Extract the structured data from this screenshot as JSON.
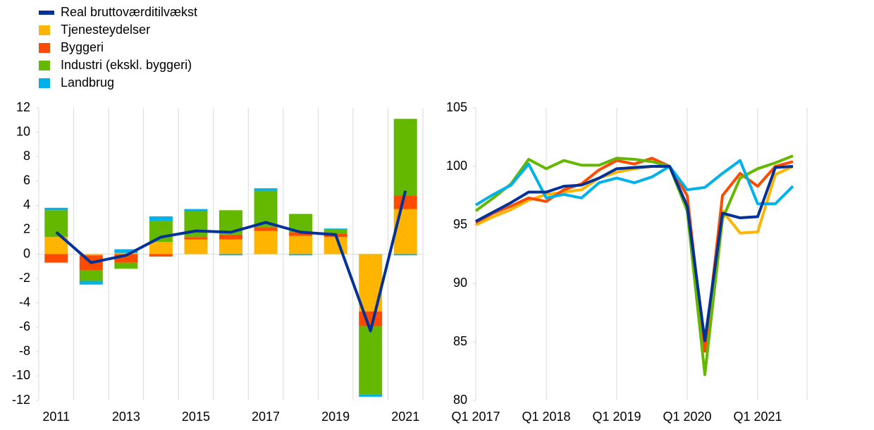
{
  "chart_data": [
    {
      "type": "bar",
      "stacked": true,
      "categories": [
        "2011",
        null,
        "2013",
        null,
        "2015",
        null,
        "2017",
        null,
        "2019",
        null,
        "2021"
      ],
      "ylim": [
        -12,
        12
      ],
      "yticks": [
        -12,
        -10,
        -8,
        -6,
        -4,
        -2,
        0,
        2,
        4,
        6,
        8,
        10,
        12
      ],
      "series": [
        {
          "name": "Real bruttoværditilvækst",
          "type": "line",
          "color": "#003299",
          "values": [
            1.8,
            -0.7,
            -0.1,
            1.4,
            1.9,
            1.8,
            2.6,
            1.8,
            1.6,
            -6.3,
            5.2
          ]
        },
        {
          "name": "Tjenesteydelser",
          "type": "bar",
          "color": "#ffb400",
          "values": [
            1.4,
            -0.1,
            0.1,
            1.0,
            1.2,
            1.2,
            1.9,
            1.5,
            1.4,
            -4.7,
            3.7
          ]
        },
        {
          "name": "Byggeri",
          "type": "bar",
          "color": "#ff4b00",
          "values": [
            -0.7,
            -1.2,
            -0.7,
            -0.2,
            0.2,
            0.4,
            0.3,
            0.3,
            0.3,
            -1.2,
            1.1
          ]
        },
        {
          "name": "Industri (ekskl. byggeri)",
          "type": "bar",
          "color": "#65b800",
          "values": [
            2.2,
            -0.9,
            -0.5,
            1.7,
            2.1,
            2.0,
            3.0,
            1.5,
            0.3,
            -5.6,
            6.3
          ]
        },
        {
          "name": "Landbrug",
          "type": "bar",
          "color": "#00b1ea",
          "values": [
            0.2,
            -0.3,
            0.3,
            0.4,
            0.2,
            -0.1,
            0.2,
            -0.1,
            0.1,
            -0.2,
            -0.1
          ]
        }
      ]
    },
    {
      "type": "line",
      "categories": [
        "Q1 2017",
        null,
        null,
        null,
        "Q1 2018",
        null,
        null,
        null,
        "Q1 2019",
        null,
        null,
        null,
        "Q1 2020",
        null,
        null,
        null,
        "Q1 2021",
        null,
        null
      ],
      "ylim": [
        80,
        105
      ],
      "yticks": [
        80,
        85,
        90,
        95,
        100,
        105
      ],
      "series": [
        {
          "color": "#ffb400",
          "values": [
            95.0,
            95.7,
            96.3,
            97.1,
            97.6,
            97.8,
            98.0,
            99.0,
            99.5,
            99.8,
            100.0,
            100.0,
            96.5,
            84.8,
            96.2,
            94.3,
            94.4,
            99.3,
            100.0
          ]
        },
        {
          "color": "#ff4b00",
          "values": [
            95.2,
            96.0,
            96.6,
            97.3,
            97.0,
            98.0,
            98.5,
            99.7,
            100.5,
            100.2,
            100.7,
            100.0,
            97.5,
            84.2,
            97.5,
            99.4,
            98.3,
            100.0,
            100.4
          ]
        },
        {
          "color": "#65b800",
          "values": [
            96.2,
            97.3,
            98.5,
            100.6,
            99.8,
            100.5,
            100.1,
            100.1,
            100.7,
            100.6,
            100.4,
            100.0,
            96.2,
            82.2,
            95.5,
            99.0,
            99.8,
            100.3,
            100.9
          ]
        },
        {
          "color": "#00b1ea",
          "values": [
            96.7,
            97.6,
            98.4,
            100.2,
            97.3,
            97.6,
            97.3,
            98.6,
            99.0,
            98.6,
            99.1,
            100.0,
            98.0,
            98.2,
            99.4,
            100.5,
            96.8,
            96.8,
            98.3
          ]
        },
        {
          "color": "#003299",
          "values": [
            95.3,
            96.1,
            96.9,
            97.8,
            97.8,
            98.3,
            98.4,
            99.0,
            99.8,
            99.9,
            100.0,
            100.0,
            96.6,
            85.1,
            96.0,
            95.6,
            95.7,
            99.9,
            100.0
          ]
        }
      ]
    }
  ]
}
